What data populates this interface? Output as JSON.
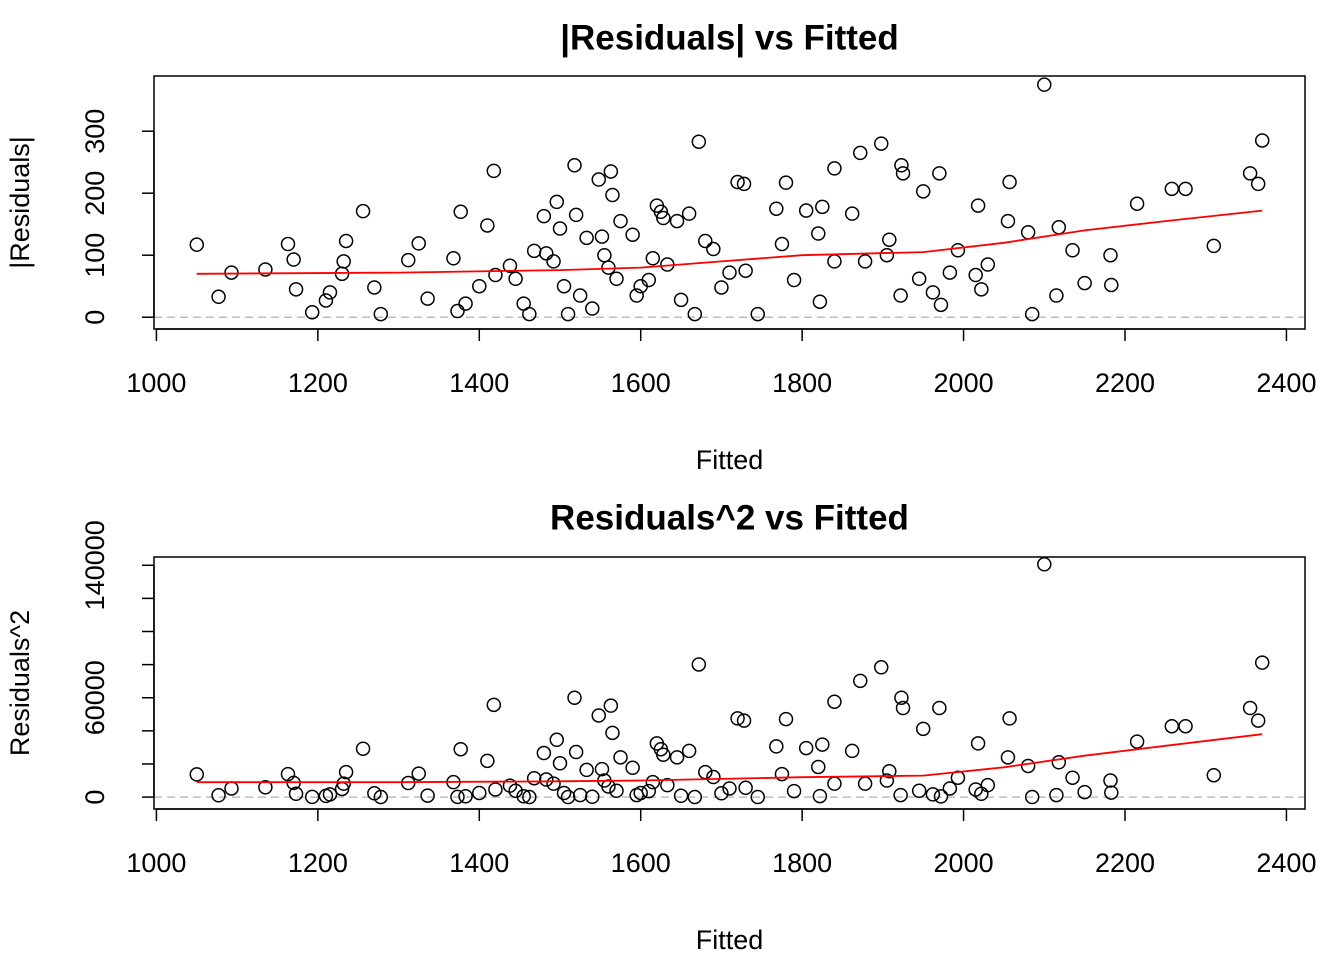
{
  "chart_data": [
    {
      "type": "scatter",
      "title": "|Residuals| vs Fitted",
      "xlabel": "Fitted",
      "ylabel": "|Residuals|",
      "xlim": [
        997,
        2423
      ],
      "ylim": [
        -19,
        389
      ],
      "xticks": [
        1000,
        1200,
        1400,
        1600,
        1800,
        2000,
        2200,
        2400
      ],
      "yticks": [
        0,
        100,
        200,
        300
      ],
      "point_color": "#000000",
      "x": [
        1050,
        1077,
        1093,
        1135,
        1163,
        1170,
        1173,
        1193,
        1210,
        1215,
        1230,
        1232,
        1235,
        1256,
        1270,
        1278,
        1312,
        1325,
        1336,
        1368,
        1373,
        1377,
        1383,
        1400,
        1410,
        1418,
        1420,
        1438,
        1445,
        1455,
        1462,
        1468,
        1480,
        1483,
        1492,
        1496,
        1500,
        1505,
        1510,
        1518,
        1520,
        1525,
        1533,
        1540,
        1548,
        1552,
        1555,
        1560,
        1563,
        1565,
        1570,
        1575,
        1590,
        1595,
        1600,
        1610,
        1615,
        1620,
        1625,
        1628,
        1633,
        1645,
        1650,
        1660,
        1667,
        1672,
        1680,
        1690,
        1700,
        1710,
        1720,
        1728,
        1730,
        1745,
        1768,
        1775,
        1780,
        1790,
        1805,
        1820,
        1822,
        1825,
        1840,
        1840,
        1862,
        1872,
        1878,
        1898,
        1905,
        1908,
        1922,
        1923,
        1925,
        1945,
        1950,
        1962,
        1970,
        1972,
        1983,
        1993,
        2015,
        2018,
        2022,
        2030,
        2055,
        2057,
        2080,
        2085,
        2100,
        2115,
        2118,
        2135,
        2150,
        2182,
        2183,
        2215,
        2258,
        2275,
        2310,
        2355,
        2365,
        2370
      ],
      "values": [
        117,
        33,
        72,
        77,
        118,
        93,
        45,
        8,
        27,
        40,
        70,
        90,
        123,
        171,
        48,
        5,
        92,
        119,
        30,
        95,
        10,
        170,
        22,
        50,
        148,
        236,
        68,
        83,
        62,
        22,
        5,
        107,
        163,
        103,
        90,
        186,
        143,
        50,
        5,
        245,
        165,
        35,
        128,
        14,
        222,
        130,
        100,
        80,
        235,
        197,
        62,
        155,
        133,
        35,
        50,
        60,
        95,
        180,
        170,
        160,
        85,
        155,
        28,
        167,
        5,
        283,
        123,
        110,
        48,
        72,
        218,
        215,
        75,
        5,
        175,
        118,
        217,
        60,
        172,
        135,
        25,
        178,
        240,
        90,
        167,
        265,
        90,
        280,
        100,
        125,
        35,
        245,
        232,
        62,
        203,
        40,
        232,
        20,
        72,
        108,
        68,
        180,
        45,
        85,
        155,
        218,
        137,
        5,
        375,
        35,
        145,
        108,
        55,
        100,
        52,
        183,
        207,
        207,
        115,
        232,
        215,
        285
      ],
      "smooth": {
        "color": "#ff0000",
        "x": [
          1050,
          1300,
          1500,
          1600,
          1700,
          1800,
          1950,
          2050,
          2150,
          2250,
          2370
        ],
        "values": [
          70,
          72,
          76,
          80,
          90,
          100,
          105,
          120,
          140,
          155,
          172
        ]
      },
      "hline": {
        "value": 0,
        "color": "#bebebe"
      }
    },
    {
      "type": "scatter",
      "title": "Residuals^2 vs Fitted",
      "xlabel": "Fitted",
      "ylabel": "Residuals^2",
      "xlim": [
        997,
        2423
      ],
      "ylim": [
        -7200,
        145000
      ],
      "xticks": [
        1000,
        1200,
        1400,
        1600,
        1800,
        2000,
        2200,
        2400
      ],
      "yticks": [
        0,
        {
          "value": 20000,
          "label": null
        },
        {
          "value": 40000,
          "label": null
        },
        60000,
        {
          "value": 80000,
          "label": null
        },
        {
          "value": 100000,
          "label": null
        },
        {
          "value": 120000,
          "label": null
        },
        140000
      ],
      "point_color": "#000000",
      "x": [
        1050,
        1077,
        1093,
        1135,
        1163,
        1170,
        1173,
        1193,
        1210,
        1215,
        1230,
        1232,
        1235,
        1256,
        1270,
        1278,
        1312,
        1325,
        1336,
        1368,
        1373,
        1377,
        1383,
        1400,
        1410,
        1418,
        1420,
        1438,
        1445,
        1455,
        1462,
        1468,
        1480,
        1483,
        1492,
        1496,
        1500,
        1505,
        1510,
        1518,
        1520,
        1525,
        1533,
        1540,
        1548,
        1552,
        1555,
        1560,
        1563,
        1565,
        1570,
        1575,
        1590,
        1595,
        1600,
        1610,
        1615,
        1620,
        1625,
        1628,
        1633,
        1645,
        1650,
        1660,
        1667,
        1672,
        1680,
        1690,
        1700,
        1710,
        1720,
        1728,
        1730,
        1745,
        1768,
        1775,
        1780,
        1790,
        1805,
        1820,
        1822,
        1825,
        1840,
        1840,
        1862,
        1872,
        1878,
        1898,
        1905,
        1908,
        1922,
        1923,
        1925,
        1945,
        1950,
        1962,
        1970,
        1972,
        1983,
        1993,
        2015,
        2018,
        2022,
        2030,
        2055,
        2057,
        2080,
        2085,
        2100,
        2115,
        2118,
        2135,
        2150,
        2182,
        2183,
        2215,
        2258,
        2275,
        2310,
        2355,
        2365,
        2370
      ],
      "values": [
        13700,
        1100,
        5200,
        5900,
        13900,
        8600,
        2000,
        100,
        700,
        1600,
        4900,
        8100,
        15100,
        29200,
        2300,
        25,
        8500,
        14200,
        900,
        9000,
        100,
        28900,
        500,
        2500,
        21900,
        55700,
        4600,
        6900,
        3800,
        500,
        25,
        11400,
        26600,
        10600,
        8100,
        34600,
        20400,
        2500,
        25,
        60000,
        27200,
        1200,
        16400,
        200,
        49300,
        16900,
        10000,
        6400,
        55200,
        38800,
        3800,
        24000,
        17700,
        1200,
        2500,
        3600,
        9000,
        32400,
        28900,
        25600,
        7200,
        24000,
        800,
        27900,
        25,
        80100,
        15100,
        12100,
        2300,
        5200,
        47500,
        46200,
        5600,
        25,
        30600,
        13900,
        47100,
        3600,
        29600,
        18200,
        600,
        31700,
        57600,
        8100,
        27900,
        70200,
        8100,
        78400,
        10000,
        15600,
        1200,
        60000,
        53800,
        3800,
        41200,
        1600,
        53800,
        400,
        5200,
        11700,
        4600,
        32400,
        2000,
        7200,
        24000,
        47500,
        18800,
        25,
        140600,
        1200,
        21000,
        11700,
        3000,
        10000,
        2700,
        33500,
        42800,
        42800,
        13200,
        53800,
        46200,
        81200
      ],
      "smooth": {
        "color": "#ff0000",
        "x": [
          1050,
          1300,
          1500,
          1600,
          1700,
          1800,
          1950,
          2050,
          2150,
          2250,
          2370
        ],
        "values": [
          9000,
          9000,
          9500,
          10000,
          11000,
          12000,
          13000,
          18000,
          25000,
          31000,
          38000
        ]
      },
      "hline": {
        "value": 0,
        "color": "#bebebe"
      }
    }
  ]
}
